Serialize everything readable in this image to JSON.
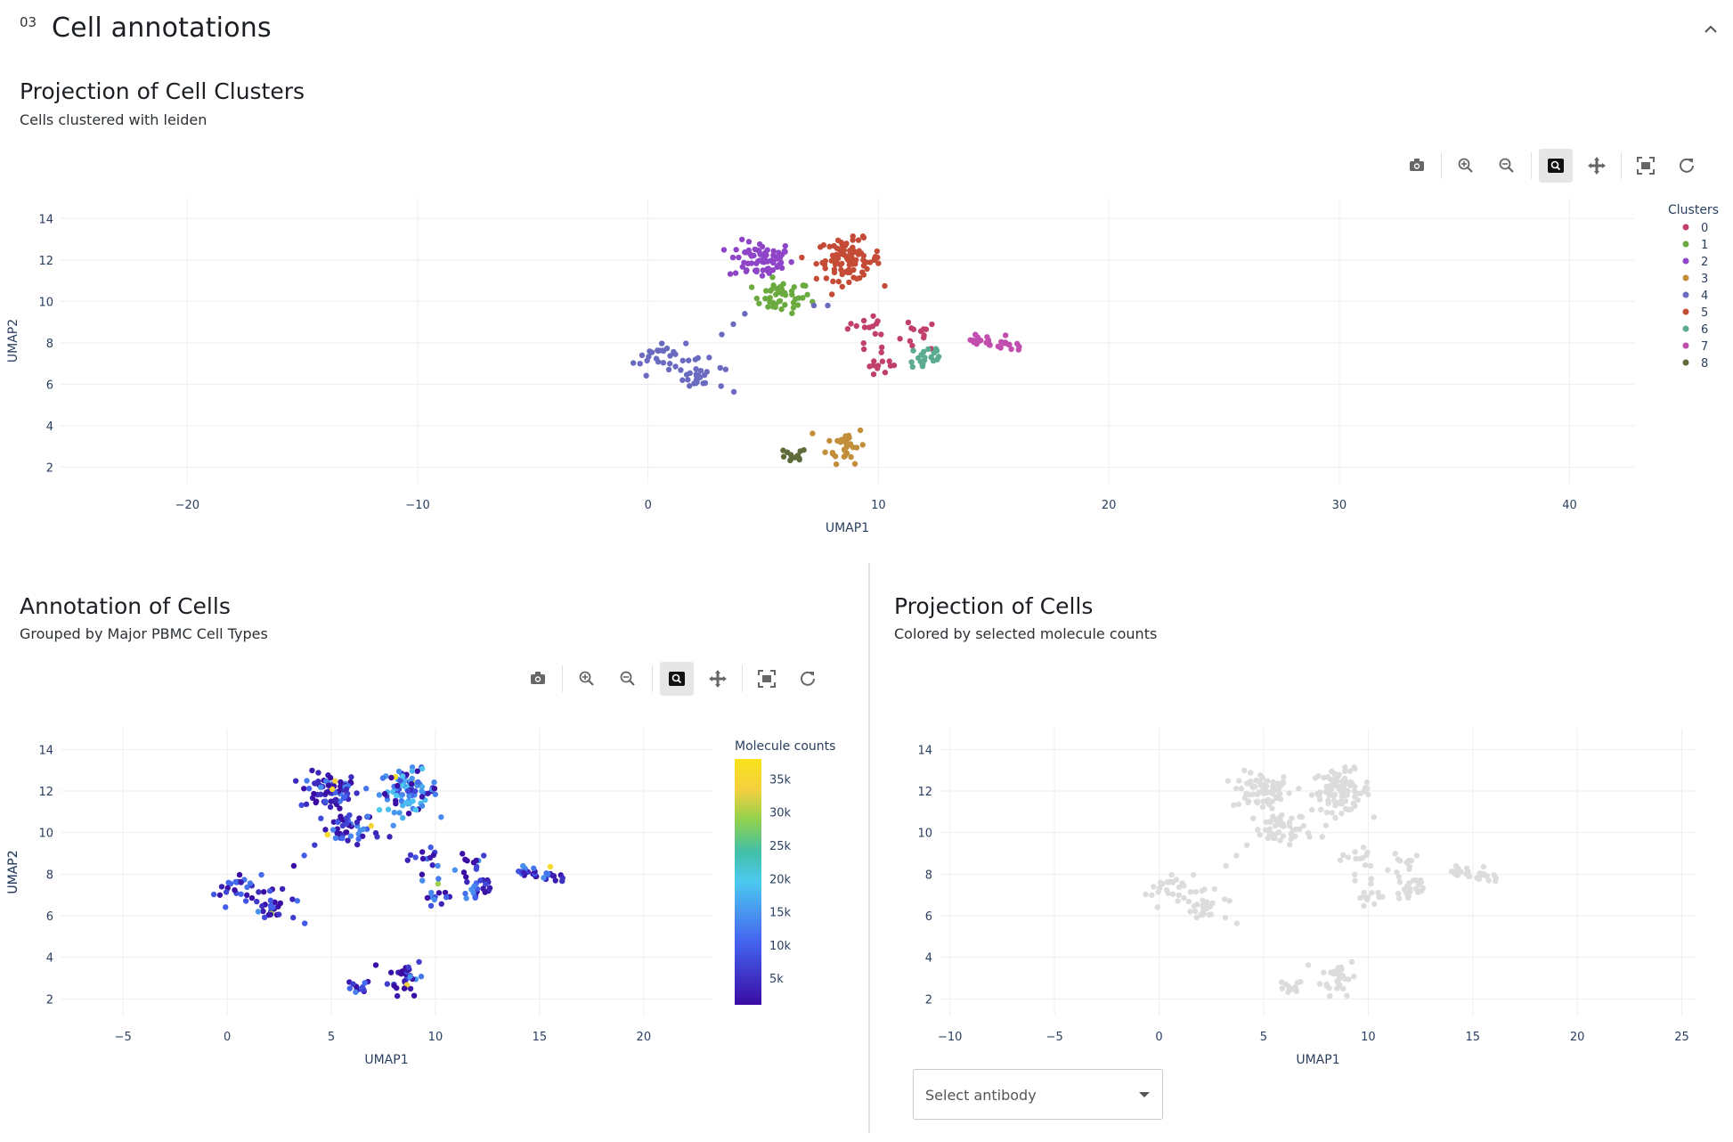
{
  "section": {
    "number": "03",
    "title": "Cell annotations"
  },
  "panels": {
    "clusters": {
      "title": "Projection of Cell Clusters",
      "subtitle": "Cells clustered with leiden"
    },
    "annotation": {
      "title": "Annotation of Cells",
      "subtitle": "Grouped by Major PBMC Cell Types"
    },
    "projection": {
      "title": "Projection of Cells",
      "subtitle": "Colored by selected molecule counts"
    }
  },
  "select": {
    "placeholder": "Select antibody"
  },
  "modebar_icons": [
    "camera-icon",
    "zoom-in-icon",
    "zoom-out-icon",
    "zoom-box-icon",
    "pan-icon",
    "autoscale-icon",
    "reset-icon"
  ],
  "colors": {
    "clusters": [
      "#c1406a",
      "#6aaa3e",
      "#8f45c8",
      "#c28e3a",
      "#6a6bc0",
      "#c44b35",
      "#5aab92",
      "#c14dae",
      "#5f6b3a"
    ],
    "grey_points": "#dcdcdc",
    "colorscale": [
      "#3a0ca3",
      "#3f37c9",
      "#4361ee",
      "#4895ef",
      "#4cc9f0",
      "#43bfa6",
      "#8fd14f",
      "#f4d03f",
      "#f9e21b"
    ]
  },
  "chart_data": [
    {
      "type": "scatter",
      "name": "clusters",
      "xlabel": "UMAP1",
      "ylabel": "UMAP2",
      "xlim": [
        -25.5,
        42.8
      ],
      "ylim": [
        1.2,
        15
      ],
      "xticks": [
        -20,
        -10,
        0,
        10,
        20,
        30,
        40
      ],
      "xtick_labels": [
        "−20",
        "−10",
        "0",
        "10",
        "20",
        "30",
        "40"
      ],
      "yticks": [
        2,
        4,
        6,
        8,
        10,
        12,
        14
      ],
      "legend": {
        "title": "Clusters",
        "position": "right",
        "entries": [
          "0",
          "1",
          "2",
          "3",
          "4",
          "5",
          "6",
          "7",
          "8"
        ]
      },
      "series": [
        {
          "cluster": 0,
          "centers": [
            [
              9.5,
              8.7
            ],
            [
              10.3,
              7.0
            ],
            [
              11.8,
              8.4
            ]
          ],
          "spread": [
            0.6,
            0.55
          ],
          "count": 40
        },
        {
          "cluster": 1,
          "centers": [
            [
              5.8,
              10.2
            ]
          ],
          "spread": [
            0.9,
            0.55
          ],
          "count": 45
        },
        {
          "cluster": 2,
          "centers": [
            [
              4.9,
              12.0
            ]
          ],
          "spread": [
            1.0,
            0.65
          ],
          "count": 70
        },
        {
          "cluster": 3,
          "centers": [
            [
              8.6,
              3.1
            ]
          ],
          "spread": [
            0.6,
            0.65
          ],
          "count": 30
        },
        {
          "cluster": 4,
          "centers": [
            [
              0.5,
              7.3
            ],
            [
              2.2,
              6.4
            ]
          ],
          "spread": [
            0.8,
            0.55
          ],
          "count": 55
        },
        {
          "cluster": 5,
          "centers": [
            [
              8.7,
              12.0
            ]
          ],
          "spread": [
            1.0,
            0.7
          ],
          "count": 90
        },
        {
          "cluster": 6,
          "centers": [
            [
              12.1,
              7.3
            ]
          ],
          "spread": [
            0.6,
            0.55
          ],
          "count": 22
        },
        {
          "cluster": 7,
          "centers": [
            [
              14.3,
              8.1
            ],
            [
              15.7,
              7.9
            ]
          ],
          "spread": [
            0.6,
            0.2
          ],
          "count": 30
        },
        {
          "cluster": 8,
          "centers": [
            [
              6.2,
              2.5
            ]
          ],
          "spread": [
            0.5,
            0.3
          ],
          "count": 12
        }
      ]
    },
    {
      "type": "scatter",
      "name": "molecule-counts",
      "xlabel": "UMAP1",
      "ylabel": "UMAP2",
      "xlim": [
        -8,
        23.3
      ],
      "ylim": [
        1.2,
        15
      ],
      "xticks": [
        -5,
        0,
        5,
        10,
        15,
        20
      ],
      "xtick_labels": [
        "−5",
        "0",
        "5",
        "10",
        "15",
        "20"
      ],
      "yticks": [
        2,
        4,
        6,
        8,
        10,
        12,
        14
      ],
      "colorbar": {
        "title": "Molecule counts",
        "range": [
          1000,
          38000
        ],
        "ticks": [
          "5k",
          "10k",
          "15k",
          "20k",
          "25k",
          "30k",
          "35k"
        ]
      }
    },
    {
      "type": "scatter",
      "name": "selected-antibody",
      "xlabel": "UMAP1",
      "ylabel": "UMAP2",
      "xlim": [
        -10.5,
        25.7
      ],
      "ylim": [
        1.2,
        15
      ],
      "xticks": [
        -10,
        -5,
        0,
        5,
        10,
        15,
        20,
        25
      ],
      "xtick_labels": [
        "−10",
        "−5",
        "0",
        "5",
        "10",
        "15",
        "20",
        "25"
      ],
      "yticks": [
        2,
        4,
        6,
        8,
        10,
        12,
        14
      ]
    }
  ]
}
